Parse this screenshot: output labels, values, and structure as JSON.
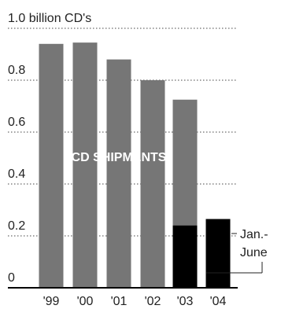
{
  "chart_data": {
    "type": "bar",
    "title": "",
    "xlabel": "",
    "ylabel": "",
    "categories": [
      "'99",
      "'00",
      "'01",
      "'02",
      "'03",
      "'04"
    ],
    "values": [
      0.94,
      0.945,
      0.88,
      0.8,
      0.725,
      0.265
    ],
    "overlay": {
      "index": 4,
      "value": 0.24,
      "color": "#000000"
    },
    "ylim": [
      0,
      1.0
    ],
    "yticks": [
      0,
      0.2,
      0.4,
      0.6,
      0.8,
      1.0
    ],
    "ytick_labels": [
      "0",
      "0.2",
      "0.4",
      "0.6",
      "0.8",
      "1.0 billion CD's"
    ],
    "grid": true,
    "annotations": {
      "series_label": "CD SHIPMENTS",
      "note_line1": "Jan.-",
      "note_line2": "June"
    },
    "colors": {
      "main_bar": "#767676",
      "highlight_bar": "#000000",
      "grid": "#444444",
      "text": "#222222",
      "axis": "#000000"
    }
  }
}
